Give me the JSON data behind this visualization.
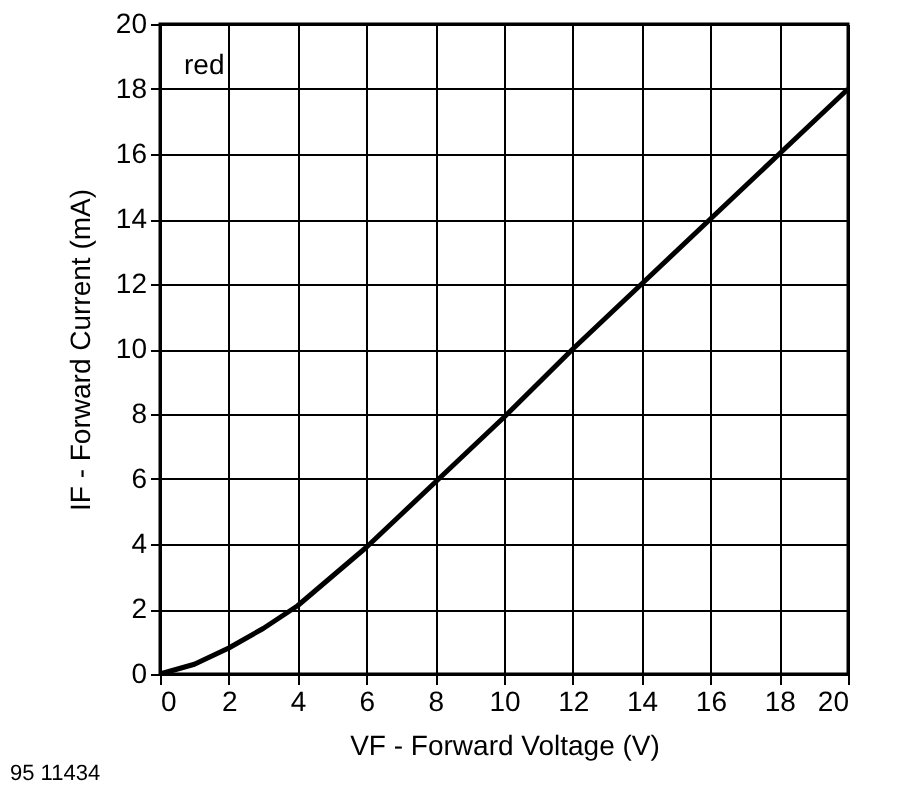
{
  "chart_data": {
    "type": "line",
    "xlabel": "VF - Forward Voltage (V)",
    "ylabel": "IF - Forward Current (mA)",
    "x": [
      0,
      1,
      2,
      3,
      4,
      5,
      6,
      7,
      8,
      10,
      12,
      14,
      16,
      18,
      20
    ],
    "series": [
      {
        "color": "#000000",
        "values": [
          0,
          0.3,
          0.8,
          1.4,
          2.1,
          3.0,
          3.9,
          4.9,
          5.9,
          7.9,
          10.0,
          12.0,
          14.0,
          16.0,
          18.0
        ]
      }
    ],
    "xlim": [
      0,
      20
    ],
    "ylim": [
      0,
      20
    ],
    "xticks": [
      0,
      2,
      4,
      6,
      8,
      10,
      12,
      14,
      16,
      18,
      20
    ],
    "yticks": [
      0,
      2,
      4,
      6,
      8,
      10,
      12,
      14,
      16,
      18,
      20
    ],
    "grid": true,
    "marker": "none",
    "line_style": "solid",
    "annotations": [
      "red",
      "95 11434"
    ]
  }
}
